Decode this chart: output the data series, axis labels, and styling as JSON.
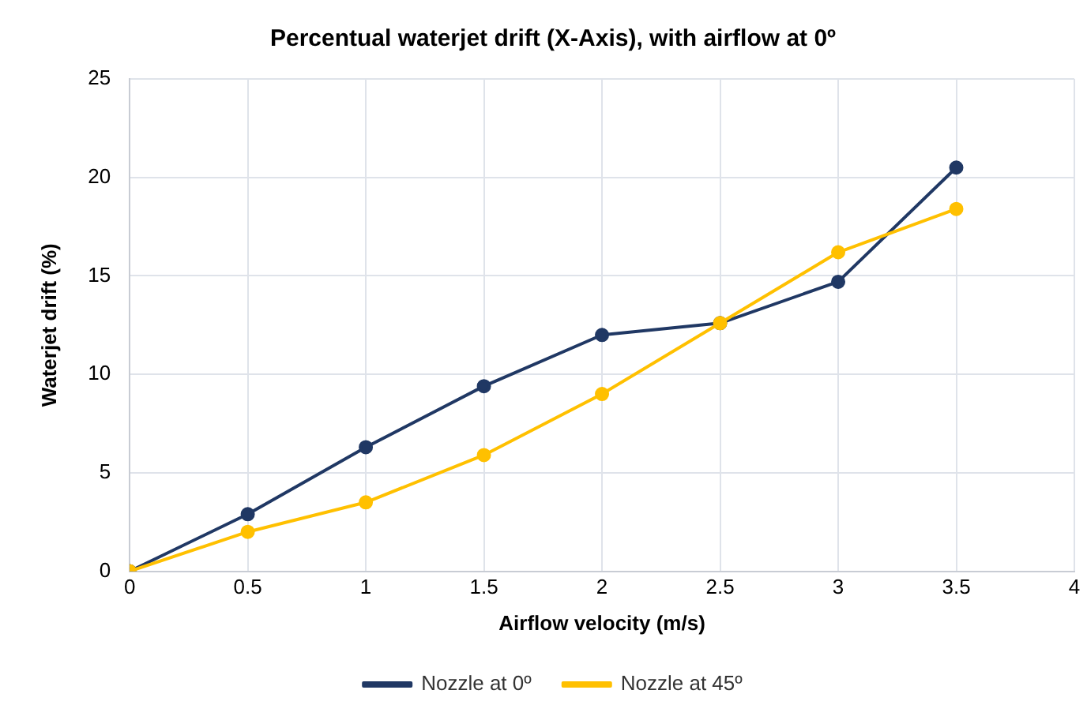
{
  "chart_data": {
    "type": "line",
    "title": "Percentual waterjet drift (X-Axis), with airflow at 0º",
    "xlabel": "Airflow velocity (m/s)",
    "ylabel": "Waterjet drift (%)",
    "x": [
      0,
      0.5,
      1,
      1.5,
      2,
      2.5,
      3,
      3.5
    ],
    "series": [
      {
        "name": "Nozzle at 0º",
        "color": "#203864",
        "values": [
          0,
          2.9,
          6.3,
          9.4,
          12.0,
          12.6,
          14.7,
          20.5
        ]
      },
      {
        "name": "Nozzle at 45º",
        "color": "#ffc000",
        "values": [
          0,
          2.0,
          3.5,
          5.9,
          9.0,
          12.6,
          16.2,
          18.4
        ]
      }
    ],
    "xlim": [
      0,
      4
    ],
    "xticks": [
      0,
      0.5,
      1,
      1.5,
      2,
      2.5,
      3,
      3.5,
      4
    ],
    "ylim": [
      0,
      25
    ],
    "yticks": [
      0,
      5,
      10,
      15,
      20,
      25
    ],
    "grid": true,
    "legend": "bottom",
    "marker": "circle",
    "line_style": "solid"
  }
}
